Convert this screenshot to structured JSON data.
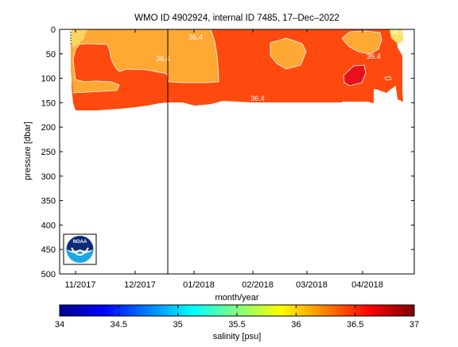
{
  "chart_data": {
    "type": "heatmap",
    "title": "WMO ID 4902924, internal ID 7485, 17–Dec–2022",
    "xlabel": "month/year",
    "ylabel": "pressure [dbar]",
    "x_ticks": [
      "11/2017",
      "12/2017",
      "01/2018",
      "02/2018",
      "03/2018",
      "04/2018"
    ],
    "y_ticks": [
      0,
      50,
      100,
      150,
      200,
      250,
      300,
      350,
      400,
      450,
      500
    ],
    "ylim": [
      500,
      0
    ],
    "y_reversed": true,
    "colorbar": {
      "label": "salinity [psu]",
      "range": [
        34,
        37
      ],
      "ticks": [
        "34",
        "34.5",
        "35",
        "35.5",
        "36",
        "36.5",
        "37"
      ]
    },
    "contour_labels": [
      {
        "text": "36.4",
        "month": "12/2017",
        "pressure": 8
      },
      {
        "text": "36.4",
        "month": "12/2017",
        "pressure": 60
      },
      {
        "text": "36.4",
        "month": "01/2018",
        "pressure": 142
      },
      {
        "text": "36.4",
        "month": "04/2018",
        "pressure": 58
      },
      {
        "text": "36.6",
        "month": "04/2018",
        "pressure": 5
      }
    ],
    "regions": [
      {
        "salinity_range": "36.2-36.4",
        "color": "#FFA834"
      },
      {
        "salinity_range": "36.4-36.6",
        "color": "#FF4A0F"
      },
      {
        "salinity_range": ">36.6",
        "color": "#E8101C"
      }
    ],
    "vertical_marker": {
      "label": "",
      "position_month": "12/2017 (end)"
    }
  },
  "logo": {
    "text": "NOAA",
    "name": "noaa-logo"
  }
}
